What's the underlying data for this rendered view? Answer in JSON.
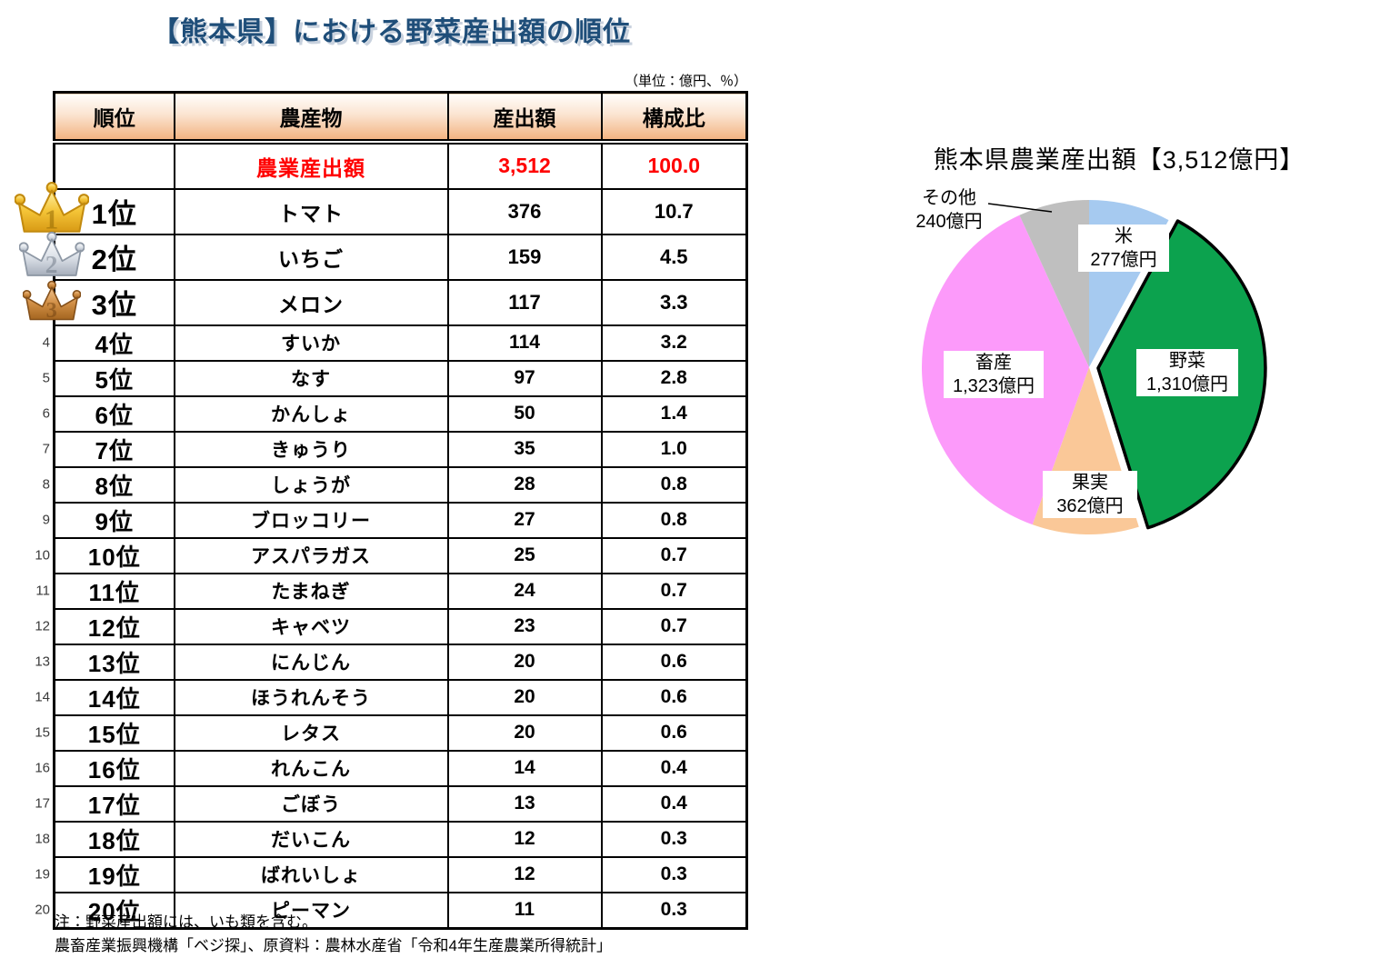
{
  "page": {
    "title": "【熊本県】における野菜産出額の順位",
    "unit_note": "（単位：億円、％）",
    "notes": [
      "注：野菜産出額には、いも類を含む。",
      "農畜産業振興機構「ベジ探」、原資料：農林水産省「令和4年生産農業所得統計」"
    ]
  },
  "colors": {
    "title_navy": "#1F4E79",
    "total_row_red": "#FF0000",
    "header_gradient_bottom": "#F2B381",
    "vegetable_outline": "#000000"
  },
  "table": {
    "headers": [
      "順位",
      "農産物",
      "産出額",
      "構成比"
    ],
    "total_row": {
      "rank": "",
      "product": "農業産出額",
      "value": "3,512",
      "share": "100.0"
    },
    "rows": [
      {
        "rank_no": "1",
        "rank": "1位",
        "marker": "gold-crown",
        "product": "トマト",
        "value": "376",
        "share": "10.7"
      },
      {
        "rank_no": "2",
        "rank": "2位",
        "marker": "silver-crown",
        "product": "いちご",
        "value": "159",
        "share": "4.5"
      },
      {
        "rank_no": "3",
        "rank": "3位",
        "marker": "bronze-crown",
        "product": "メロン",
        "value": "117",
        "share": "3.3"
      },
      {
        "rank_no": "4",
        "rank": "4位",
        "marker": "number",
        "product": "すいか",
        "value": "114",
        "share": "3.2"
      },
      {
        "rank_no": "5",
        "rank": "5位",
        "marker": "number",
        "product": "なす",
        "value": "97",
        "share": "2.8"
      },
      {
        "rank_no": "6",
        "rank": "6位",
        "marker": "number",
        "product": "かんしょ",
        "value": "50",
        "share": "1.4"
      },
      {
        "rank_no": "7",
        "rank": "7位",
        "marker": "number",
        "product": "きゅうり",
        "value": "35",
        "share": "1.0"
      },
      {
        "rank_no": "8",
        "rank": "8位",
        "marker": "number",
        "product": "しょうが",
        "value": "28",
        "share": "0.8"
      },
      {
        "rank_no": "9",
        "rank": "9位",
        "marker": "number",
        "product": "ブロッコリー",
        "value": "27",
        "share": "0.8"
      },
      {
        "rank_no": "10",
        "rank": "10位",
        "marker": "number",
        "product": "アスパラガス",
        "value": "25",
        "share": "0.7"
      },
      {
        "rank_no": "11",
        "rank": "11位",
        "marker": "number",
        "product": "たまねぎ",
        "value": "24",
        "share": "0.7"
      },
      {
        "rank_no": "12",
        "rank": "12位",
        "marker": "number",
        "product": "キャベツ",
        "value": "23",
        "share": "0.7"
      },
      {
        "rank_no": "13",
        "rank": "13位",
        "marker": "number",
        "product": "にんじん",
        "value": "20",
        "share": "0.6"
      },
      {
        "rank_no": "14",
        "rank": "14位",
        "marker": "number",
        "product": "ほうれんそう",
        "value": "20",
        "share": "0.6"
      },
      {
        "rank_no": "15",
        "rank": "15位",
        "marker": "number",
        "product": "レタス",
        "value": "20",
        "share": "0.6"
      },
      {
        "rank_no": "16",
        "rank": "16位",
        "marker": "number",
        "product": "れんこん",
        "value": "14",
        "share": "0.4"
      },
      {
        "rank_no": "17",
        "rank": "17位",
        "marker": "number",
        "product": "ごぼう",
        "value": "13",
        "share": "0.4"
      },
      {
        "rank_no": "18",
        "rank": "18位",
        "marker": "number",
        "product": "だいこん",
        "value": "12",
        "share": "0.3"
      },
      {
        "rank_no": "19",
        "rank": "19位",
        "marker": "number",
        "product": "ばれいしょ",
        "value": "12",
        "share": "0.3"
      },
      {
        "rank_no": "20",
        "rank": "20位",
        "marker": "number",
        "product": "ピーマン",
        "value": "11",
        "share": "0.3"
      }
    ]
  },
  "chart_data": [
    {
      "type": "pie",
      "title": "熊本県農業産出額【3,512億円】",
      "total": 3512,
      "unit": "億円",
      "start_angle_deg": 0,
      "direction": "clockwise",
      "legend_position": "labels-on-slices",
      "slices": [
        {
          "label": "米",
          "value": 277,
          "value_label": "277億円",
          "color": "#A6CAF0",
          "explode": false,
          "outlined": false
        },
        {
          "label": "野菜",
          "value": 1310,
          "value_label": "1,310億円",
          "color": "#0CA24E",
          "explode": true,
          "outlined": true
        },
        {
          "label": "果実",
          "value": 362,
          "value_label": "362億円",
          "color": "#FAC898",
          "explode": false,
          "outlined": false
        },
        {
          "label": "畜産",
          "value": 1323,
          "value_label": "1,323億円",
          "color": "#FC9AFA",
          "explode": false,
          "outlined": false
        },
        {
          "label": "その他",
          "value": 240,
          "value_label": "240億円",
          "color": "#BFBFBF",
          "explode": false,
          "outlined": false
        }
      ]
    },
    {
      "type": "table",
      "title": "【熊本県】における野菜産出額の順位",
      "columns": [
        "順位",
        "農産物",
        "産出額",
        "構成比"
      ],
      "unit": "億円、％",
      "rows": [
        [
          "",
          "農業産出額",
          3512,
          100.0
        ],
        [
          "1位",
          "トマト",
          376,
          10.7
        ],
        [
          "2位",
          "いちご",
          159,
          4.5
        ],
        [
          "3位",
          "メロン",
          117,
          3.3
        ],
        [
          "4位",
          "すいか",
          114,
          3.2
        ],
        [
          "5位",
          "なす",
          97,
          2.8
        ],
        [
          "6位",
          "かんしょ",
          50,
          1.4
        ],
        [
          "7位",
          "きゅうり",
          35,
          1.0
        ],
        [
          "8位",
          "しょうが",
          28,
          0.8
        ],
        [
          "9位",
          "ブロッコリー",
          27,
          0.8
        ],
        [
          "10位",
          "アスパラガス",
          25,
          0.7
        ],
        [
          "11位",
          "たまねぎ",
          24,
          0.7
        ],
        [
          "12位",
          "キャベツ",
          23,
          0.7
        ],
        [
          "13位",
          "にんじん",
          20,
          0.6
        ],
        [
          "14位",
          "ほうれんそう",
          20,
          0.6
        ],
        [
          "15位",
          "レタス",
          20,
          0.6
        ],
        [
          "16位",
          "れんこん",
          14,
          0.4
        ],
        [
          "17位",
          "ごぼう",
          13,
          0.4
        ],
        [
          "18位",
          "だいこん",
          12,
          0.3
        ],
        [
          "19位",
          "ばれいしょ",
          12,
          0.3
        ],
        [
          "20位",
          "ピーマン",
          11,
          0.3
        ]
      ]
    }
  ]
}
